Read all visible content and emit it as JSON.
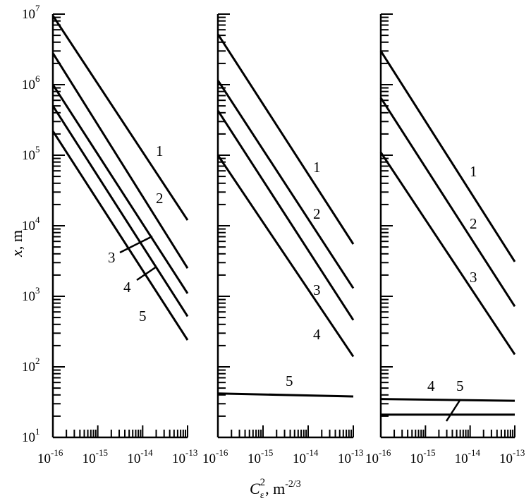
{
  "axes": {
    "ylabel_main": "x",
    "ylabel_unit": ", m",
    "xlabel_symbol": "C",
    "xlabel_sub": "ε",
    "xlabel_sup": "2",
    "xlabel_unit": ", m",
    "xlabel_unit_sup": "-2/3"
  },
  "y_tick_labels": [
    {
      "base": "10",
      "exp": "1"
    },
    {
      "base": "10",
      "exp": "2"
    },
    {
      "base": "10",
      "exp": "3"
    },
    {
      "base": "10",
      "exp": "4"
    },
    {
      "base": "10",
      "exp": "5"
    },
    {
      "base": "10",
      "exp": "6"
    },
    {
      "base": "10",
      "exp": "7"
    }
  ],
  "x_tick_labels": [
    {
      "base": "10",
      "exp": "-16"
    },
    {
      "base": "10",
      "exp": "-15"
    },
    {
      "base": "10",
      "exp": "-14"
    },
    {
      "base": "10",
      "exp": "-13"
    }
  ],
  "chart_data": [
    {
      "type": "line",
      "xscale": "log",
      "yscale": "log",
      "xlim": [
        1e-16,
        1e-13
      ],
      "ylim": [
        10,
        10000000.0
      ],
      "series": [
        {
          "name": "1",
          "x": [
            1e-16,
            1e-13
          ],
          "y": [
            9500000,
            12000
          ]
        },
        {
          "name": "2",
          "x": [
            1e-16,
            1e-13
          ],
          "y": [
            2800000,
            2500
          ]
        },
        {
          "name": "3",
          "x": [
            1e-16,
            1e-13
          ],
          "y": [
            1000000,
            1100
          ]
        },
        {
          "name": "4",
          "x": [
            1e-16,
            1e-13
          ],
          "y": [
            500000,
            520
          ]
        },
        {
          "name": "5",
          "x": [
            1e-16,
            1e-13
          ],
          "y": [
            220000,
            240
          ]
        }
      ]
    },
    {
      "type": "line",
      "xscale": "log",
      "yscale": "log",
      "xlim": [
        1e-16,
        1e-13
      ],
      "ylim": [
        10,
        10000000.0
      ],
      "series": [
        {
          "name": "1",
          "x": [
            1e-16,
            1e-13
          ],
          "y": [
            5200000,
            5500
          ]
        },
        {
          "name": "2",
          "x": [
            1e-16,
            1e-13
          ],
          "y": [
            1150000,
            1300
          ]
        },
        {
          "name": "3",
          "x": [
            1e-16,
            1e-13
          ],
          "y": [
            430000,
            460
          ]
        },
        {
          "name": "4",
          "x": [
            1e-16,
            1e-13
          ],
          "y": [
            100000,
            140
          ]
        },
        {
          "name": "5",
          "x": [
            1e-16,
            1e-13
          ],
          "y": [
            42,
            38
          ]
        }
      ]
    },
    {
      "type": "line",
      "xscale": "log",
      "yscale": "log",
      "xlim": [
        1e-16,
        1e-13
      ],
      "ylim": [
        10,
        10000000.0
      ],
      "series": [
        {
          "name": "1",
          "x": [
            1e-16,
            1e-13
          ],
          "y": [
            3000000,
            3100
          ]
        },
        {
          "name": "2",
          "x": [
            1e-16,
            1e-13
          ],
          "y": [
            650000,
            720
          ]
        },
        {
          "name": "3",
          "x": [
            1e-16,
            1e-13
          ],
          "y": [
            110000,
            150
          ]
        },
        {
          "name": "4",
          "x": [
            1e-16,
            1e-13
          ],
          "y": [
            35,
            33
          ]
        },
        {
          "name": "5",
          "x": [
            1e-16,
            1e-13
          ],
          "y": [
            21,
            21
          ]
        }
      ]
    }
  ]
}
